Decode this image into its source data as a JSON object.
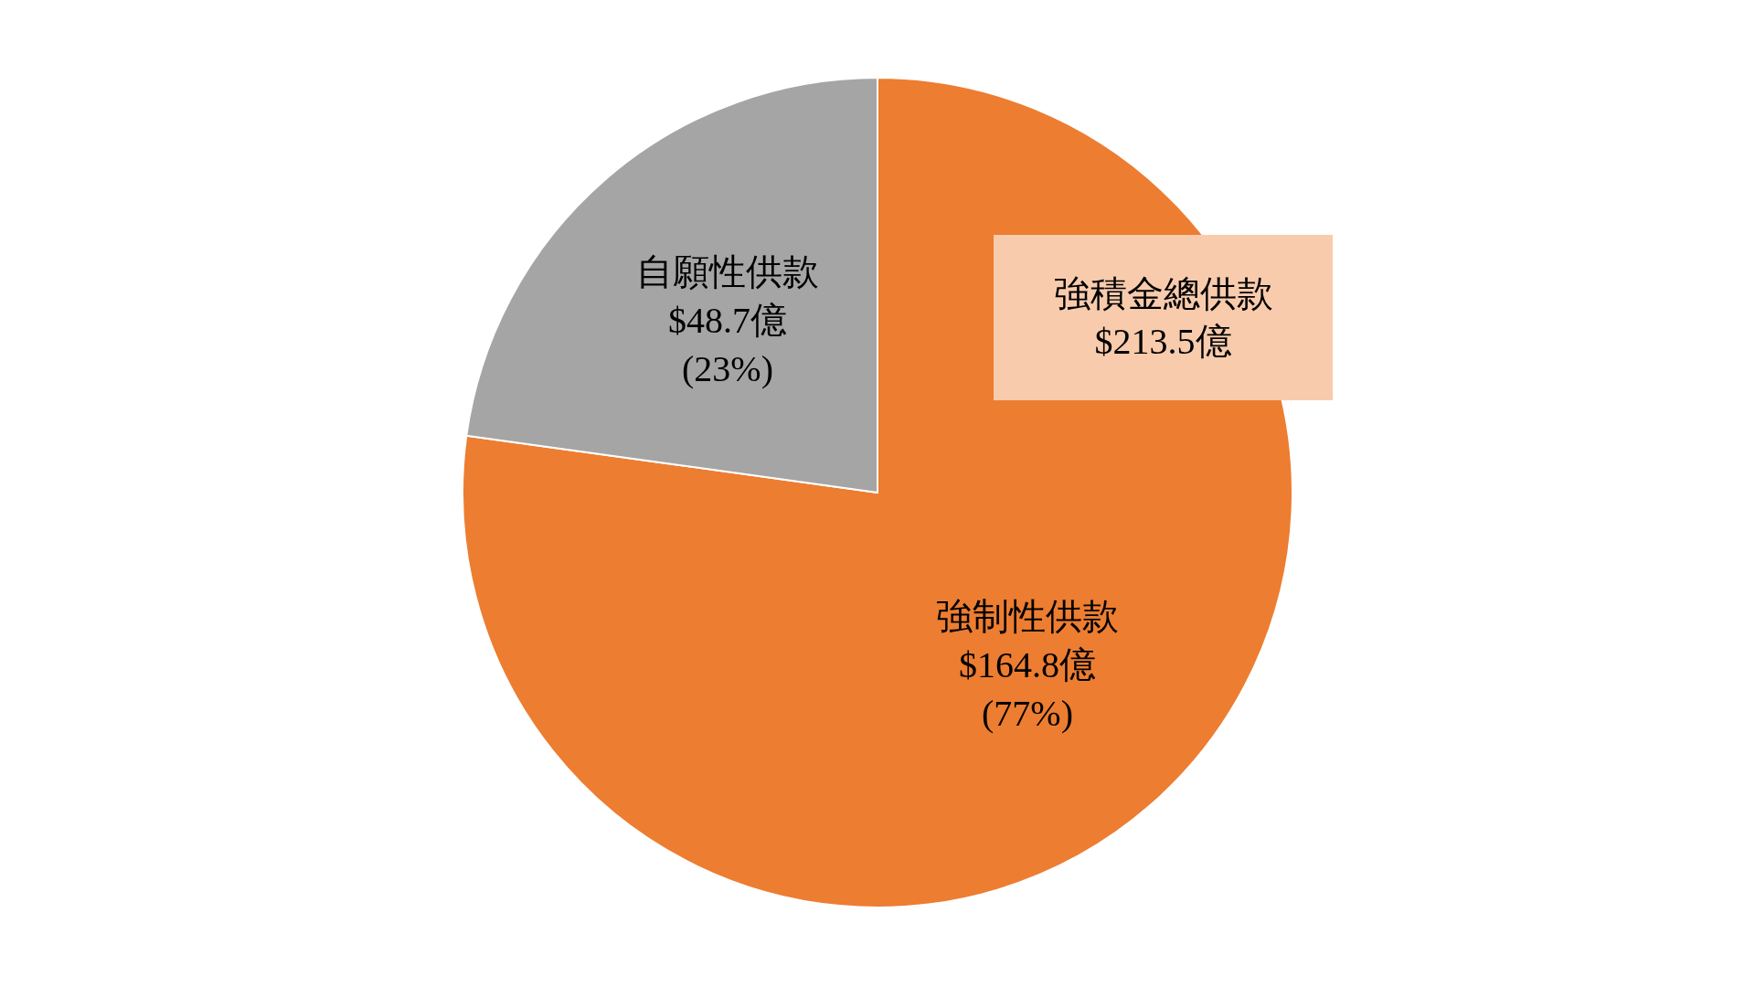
{
  "chart_data": {
    "type": "pie",
    "categories": [
      "強制性供款",
      "自願性供款"
    ],
    "values": [
      164.8,
      48.7
    ],
    "colors": [
      "#ed7d31",
      "#a5a5a5"
    ],
    "value_labels": [
      "$164.8億\n(77%)",
      "$48.7億\n(23%)"
    ],
    "annotations": [
      "強積金總供款\n$213.5億"
    ]
  }
}
